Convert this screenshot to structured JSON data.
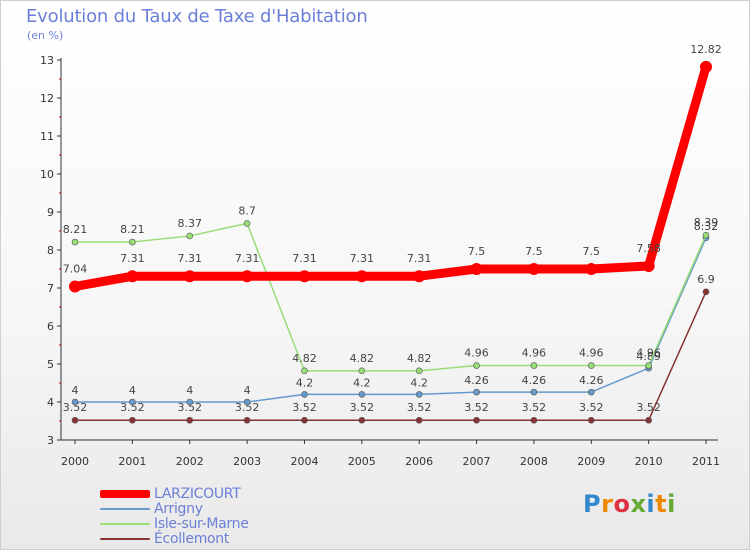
{
  "title": "Evolution du Taux de Taxe d'Habitation",
  "subtitle": "(en %)",
  "logo_text": "Proxiti",
  "chart_data": {
    "type": "line",
    "title": "Evolution du Taux de Taxe d'Habitation",
    "ylabel": "(en %)",
    "xlabel": "",
    "categories": [
      "2000",
      "2001",
      "2002",
      "2003",
      "2004",
      "2005",
      "2006",
      "2007",
      "2008",
      "2009",
      "2010",
      "2011"
    ],
    "ylim": [
      3,
      13
    ],
    "yticks": [
      "3",
      "4",
      "5",
      "6",
      "7",
      "8",
      "9",
      "10",
      "11",
      "12",
      "13"
    ],
    "grid": false,
    "legend": "bottom-left",
    "series": [
      {
        "name": "LARZICOURT",
        "color": "#ff0000",
        "values": [
          7.04,
          7.31,
          7.31,
          7.31,
          7.31,
          7.31,
          7.31,
          7.5,
          7.5,
          7.5,
          7.58,
          12.82
        ],
        "labels": [
          "7.04",
          "7.31",
          "7.31",
          "7.31",
          "7.31",
          "7.31",
          "7.31",
          "7.5",
          "7.5",
          "7.5",
          "7.58",
          "12.82"
        ]
      },
      {
        "name": "Arrigny",
        "color": "#6699cc",
        "values": [
          4,
          4,
          4,
          4,
          4.2,
          4.2,
          4.2,
          4.26,
          4.26,
          4.26,
          4.89,
          8.32
        ],
        "labels": [
          "4",
          "4",
          "4",
          "4",
          "4.2",
          "4.2",
          "4.2",
          "4.26",
          "4.26",
          "4.26",
          "4.89",
          "8.32"
        ]
      },
      {
        "name": "Isle-sur-Marne",
        "color": "#99dd77",
        "values": [
          8.21,
          8.21,
          8.37,
          8.7,
          4.82,
          4.82,
          4.82,
          4.96,
          4.96,
          4.96,
          4.96,
          8.39
        ],
        "labels": [
          "8.21",
          "8.21",
          "8.37",
          "8.7",
          "4.82",
          "4.82",
          "4.82",
          "4.96",
          "4.96",
          "4.96",
          "4.96",
          "8.39"
        ]
      },
      {
        "name": "Écollemont",
        "color": "#883333",
        "values": [
          3.52,
          3.52,
          3.52,
          3.52,
          3.52,
          3.52,
          3.52,
          3.52,
          3.52,
          3.52,
          3.52,
          6.9
        ],
        "labels": [
          "3.52",
          "3.52",
          "3.52",
          "3.52",
          "3.52",
          "3.52",
          "3.52",
          "3.52",
          "3.52",
          "3.52",
          "3.52",
          "6.9"
        ]
      }
    ]
  }
}
